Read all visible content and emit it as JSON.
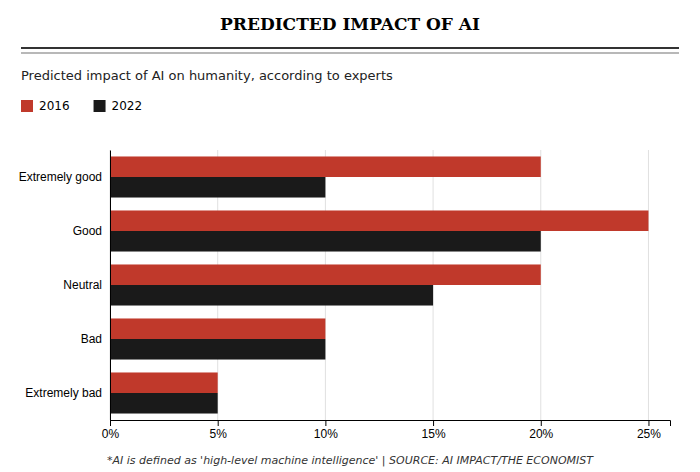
{
  "chart_data": {
    "type": "bar",
    "orientation": "horizontal",
    "title": "PREDICTED IMPACT OF AI",
    "subtitle": "Predicted impact of AI on humanity, according to experts",
    "annotations": [
      "*AI is defined as 'high-level machine intelligence' | SOURCE: AI IMPACT/THE ECONOMIST"
    ],
    "categories": [
      "Extremely good",
      "Good",
      "Neutral",
      "Bad",
      "Extremely bad"
    ],
    "series": [
      {
        "name": "2016",
        "color": "#c0392b",
        "values": [
          20,
          25,
          20,
          10,
          5
        ]
      },
      {
        "name": "2022",
        "color": "#1a1a1a",
        "values": [
          10,
          20,
          15,
          10,
          5
        ]
      }
    ],
    "xlim": [
      0,
      26
    ],
    "xticks": [
      {
        "value": 0,
        "label": "0%"
      },
      {
        "value": 5,
        "label": "5%"
      },
      {
        "value": 10,
        "label": "10%"
      },
      {
        "value": 15,
        "label": "15%"
      },
      {
        "value": 20,
        "label": "20%"
      },
      {
        "value": 25,
        "label": "25%"
      }
    ],
    "grid": true,
    "legend": "top-left"
  }
}
